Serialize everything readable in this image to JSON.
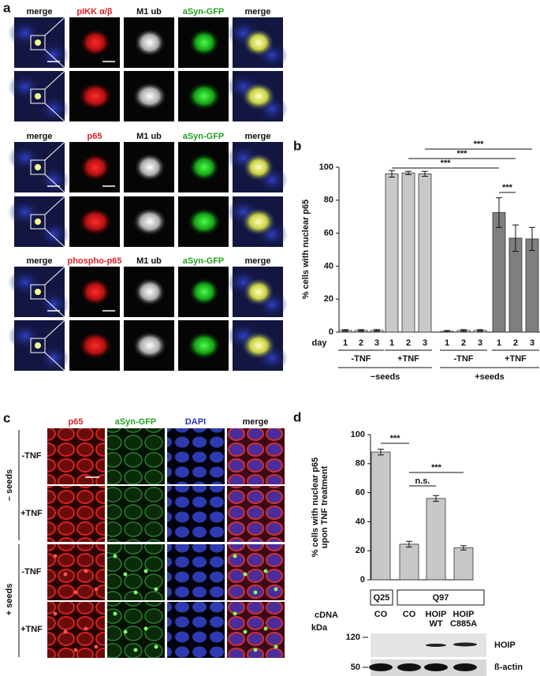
{
  "panel_labels": [
    "a",
    "b",
    "c",
    "d"
  ],
  "panel_a": {
    "rows": [
      {
        "headers": [
          "merge",
          "pIKK α/β",
          "M1 ub",
          "aSyn-GFP",
          "merge"
        ]
      },
      {
        "headers": [
          "merge",
          "p65",
          "M1 ub",
          "aSyn-GFP",
          "merge"
        ]
      },
      {
        "headers": [
          "merge",
          "phospho-p65",
          "M1 ub",
          "aSyn-GFP",
          "merge"
        ]
      }
    ]
  },
  "panel_c": {
    "headers": [
      "p65",
      "aSyn-GFP",
      "DAPI",
      "merge"
    ],
    "row_labels": [
      "-TNF",
      "+TNF",
      "-TNF",
      "+TNF"
    ],
    "groups": [
      "– seeds",
      "+ seeds"
    ]
  },
  "chart_data": [
    {
      "type": "bar",
      "ylabel": "% cells with nuclear p65",
      "x_label": "day",
      "categories": [
        "1",
        "2",
        "3",
        "1",
        "2",
        "3",
        "1",
        "2",
        "3",
        "1",
        "2",
        "3"
      ],
      "values": [
        1,
        1,
        1,
        96,
        96.5,
        96,
        0.5,
        1,
        1,
        72.5,
        57,
        56.5
      ],
      "errors": [
        0.5,
        0.5,
        0.5,
        2,
        1,
        1.5,
        0.5,
        0.5,
        0.5,
        9,
        8,
        7
      ],
      "colors": [
        "#d9d9d9",
        "#d9d9d9",
        "#d9d9d9",
        "#c8c8c8",
        "#c8c8c8",
        "#c8c8c8",
        "#d9d9d9",
        "#d9d9d9",
        "#d9d9d9",
        "#7f7f7f",
        "#7f7f7f",
        "#7f7f7f"
      ],
      "ylim": [
        0,
        100
      ],
      "yticks": [
        0,
        20,
        40,
        60,
        80,
        100
      ],
      "subgroups": [
        "-TNF",
        "+TNF",
        "-TNF",
        "+TNF"
      ],
      "groups": [
        "−seeds",
        "+seeds"
      ],
      "significance": [
        "***",
        "***",
        "***",
        "***"
      ]
    },
    {
      "type": "bar",
      "ylabel": [
        "% cells with nuclear p65",
        "upon TNF treatment"
      ],
      "x_label": "cDNA",
      "categories": [
        "CO",
        "CO",
        "HOIP WT",
        "HOIP C885A"
      ],
      "values": [
        88,
        24.5,
        56,
        22
      ],
      "errors": [
        2,
        2,
        2,
        1.5
      ],
      "color": "#c8c8c8",
      "ylim": [
        0,
        100
      ],
      "yticks": [
        0,
        20,
        40,
        60,
        80,
        100
      ],
      "groups": [
        "Q25",
        "Q97"
      ],
      "significance": [
        "***",
        "***",
        "n.s."
      ]
    }
  ],
  "blot": {
    "unit": "kDa",
    "markers": [
      120,
      50
    ],
    "proteins": [
      "HOIP",
      "ß-actin"
    ]
  }
}
